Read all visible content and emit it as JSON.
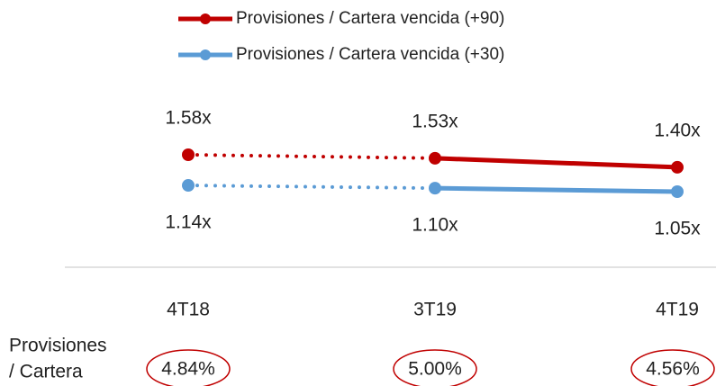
{
  "chart_data": {
    "type": "line",
    "categories": [
      "4T18",
      "3T19",
      "4T19"
    ],
    "series": [
      {
        "name": "Provisiones / Cartera vencida (+90)",
        "color": "#c00000",
        "values": [
          1.58,
          1.53,
          1.4
        ],
        "value_labels": [
          "1.58x",
          "1.53x",
          "1.40x"
        ],
        "label_position": "above"
      },
      {
        "name": "Provisiones / Cartera vencida (+30)",
        "color": "#5b9bd5",
        "values": [
          1.14,
          1.1,
          1.05
        ],
        "value_labels": [
          "1.14x",
          "1.10x",
          "1.05x"
        ],
        "label_position": "below"
      }
    ],
    "segment_styles": [
      "dotted",
      "solid"
    ],
    "ratio_label": [
      "Provisiones",
      "/ Cartera"
    ],
    "ratio_values": [
      4.84,
      5.0,
      4.56
    ],
    "ratio_value_labels": [
      "4.84%",
      "5.00%",
      "4.56%"
    ],
    "ratio_circle_color": "#c00000"
  }
}
